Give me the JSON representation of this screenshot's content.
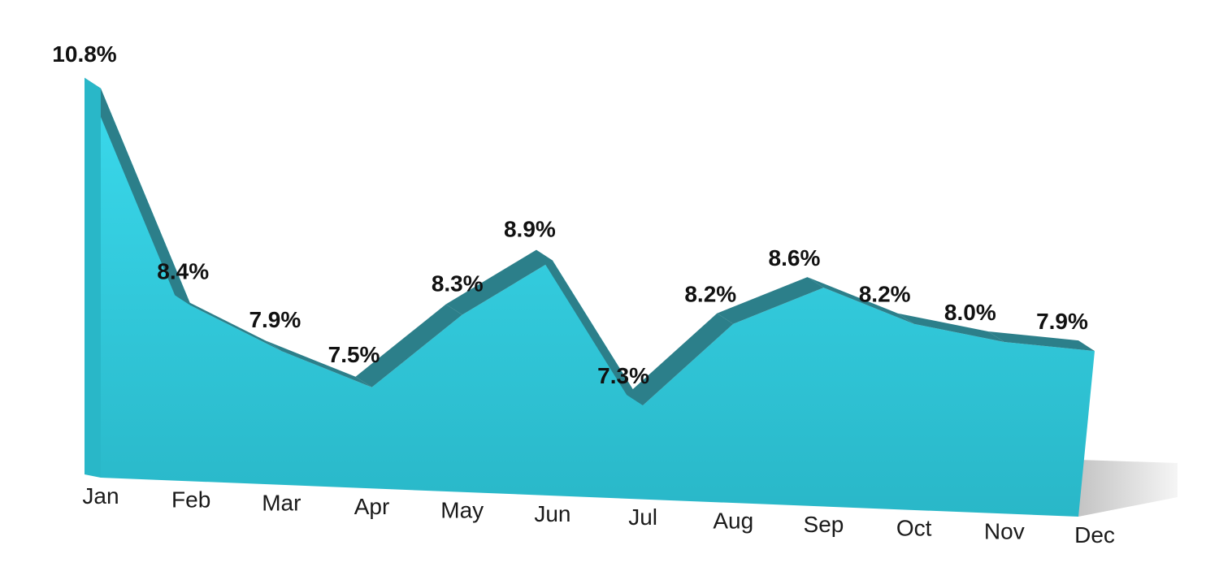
{
  "chart_data": {
    "type": "area",
    "title": "",
    "xlabel": "",
    "ylabel": "",
    "categories": [
      "Jan",
      "Feb",
      "Mar",
      "Apr",
      "May",
      "Jun",
      "Jul",
      "Aug",
      "Sep",
      "Oct",
      "Nov",
      "Dec"
    ],
    "series": [
      {
        "values": [
          10.8,
          8.4,
          7.9,
          7.5,
          8.3,
          8.9,
          7.3,
          8.2,
          8.6,
          8.2,
          8.0,
          7.9
        ],
        "labels": [
          "10.8%",
          "8.4%",
          "7.9%",
          "7.5%",
          "8.3%",
          "8.9%",
          "7.3%",
          "8.2%",
          "8.6%",
          "8.2%",
          "8.0%",
          "7.9%"
        ]
      }
    ],
    "grid": false,
    "legend": "none",
    "colors": {
      "area_top": "#3ad9ec",
      "area_bottom": "#29b7c8",
      "edge": "#2c7f8a",
      "shadow": "#bdbdbd"
    }
  }
}
